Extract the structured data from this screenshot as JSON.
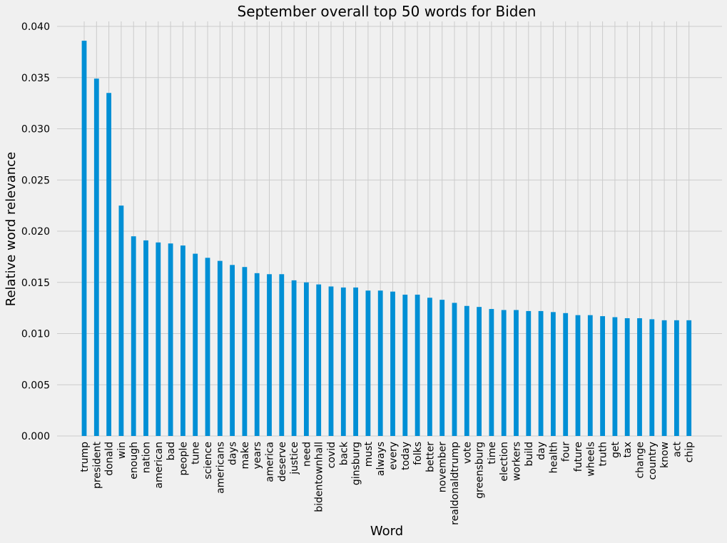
{
  "chart_data": {
    "type": "bar",
    "title": "September overall top 50 words for Biden",
    "xlabel": "Word",
    "ylabel": "Relative word relevance",
    "ylim": [
      0,
      0.04
    ],
    "yticks": [
      "0.000",
      "0.005",
      "0.010",
      "0.015",
      "0.020",
      "0.025",
      "0.030",
      "0.035",
      "0.040"
    ],
    "grid": true,
    "bar_color": "#008fd5",
    "categories": [
      "trump",
      "president",
      "donald",
      "win",
      "enough",
      "nation",
      "american",
      "bad",
      "people",
      "tune",
      "science",
      "americans",
      "days",
      "make",
      "years",
      "america",
      "deserve",
      "justice",
      "need",
      "bidentownhall",
      "covid",
      "back",
      "ginsburg",
      "must",
      "always",
      "every",
      "today",
      "folks",
      "better",
      "november",
      "realdonaldtrump",
      "vote",
      "greensburg",
      "time",
      "election",
      "workers",
      "build",
      "day",
      "health",
      "four",
      "future",
      "wheels",
      "truth",
      "get",
      "tax",
      "change",
      "country",
      "know",
      "act",
      "chip"
    ],
    "values": [
      0.0386,
      0.0349,
      0.0335,
      0.0225,
      0.0195,
      0.0191,
      0.0189,
      0.0188,
      0.0186,
      0.0178,
      0.0174,
      0.0171,
      0.0167,
      0.0165,
      0.0159,
      0.0158,
      0.0158,
      0.0152,
      0.015,
      0.0148,
      0.0146,
      0.0145,
      0.0145,
      0.0142,
      0.0142,
      0.0141,
      0.0138,
      0.0138,
      0.0135,
      0.0133,
      0.013,
      0.0127,
      0.0126,
      0.0124,
      0.0123,
      0.0123,
      0.0122,
      0.0122,
      0.0121,
      0.012,
      0.0118,
      0.0118,
      0.0117,
      0.0116,
      0.0115,
      0.0115,
      0.0114,
      0.0113,
      0.0113,
      0.0113
    ]
  }
}
